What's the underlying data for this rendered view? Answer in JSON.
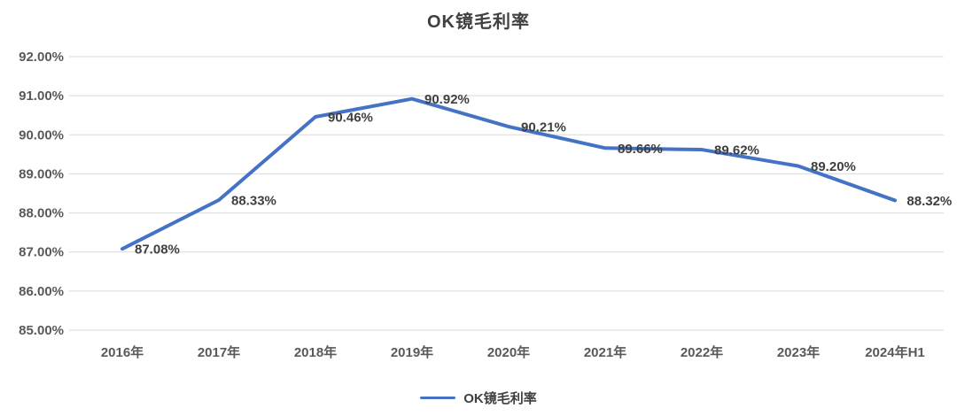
{
  "chart_data": {
    "type": "line",
    "title": "OK镜毛利率",
    "categories": [
      "2016年",
      "2017年",
      "2018年",
      "2019年",
      "2020年",
      "2021年",
      "2022年",
      "2023年",
      "2024年H1"
    ],
    "series": [
      {
        "name": "OK镜毛利率",
        "values": [
          87.08,
          88.33,
          90.46,
          90.92,
          90.21,
          89.66,
          89.62,
          89.2,
          88.32
        ],
        "data_labels": [
          "87.08%",
          "88.33%",
          "90.46%",
          "90.92%",
          "90.21%",
          "89.66%",
          "89.62%",
          "89.20%",
          "88.32%"
        ],
        "color": "#4472C4"
      }
    ],
    "y_ticks": [
      {
        "value": 92,
        "label": "92.00%"
      },
      {
        "value": 91,
        "label": "91.00%"
      },
      {
        "value": 90,
        "label": "90.00%"
      },
      {
        "value": 89,
        "label": "89.00%"
      },
      {
        "value": 88,
        "label": "88.00%"
      },
      {
        "value": 87,
        "label": "87.00%"
      },
      {
        "value": 86,
        "label": "86.00%"
      },
      {
        "value": 85,
        "label": "85.00%"
      }
    ],
    "ylim": [
      85,
      92
    ],
    "grid": true,
    "gridline_color": "#D9D9D9",
    "legend_position": "bottom",
    "legend_label": "OK镜毛利率"
  }
}
